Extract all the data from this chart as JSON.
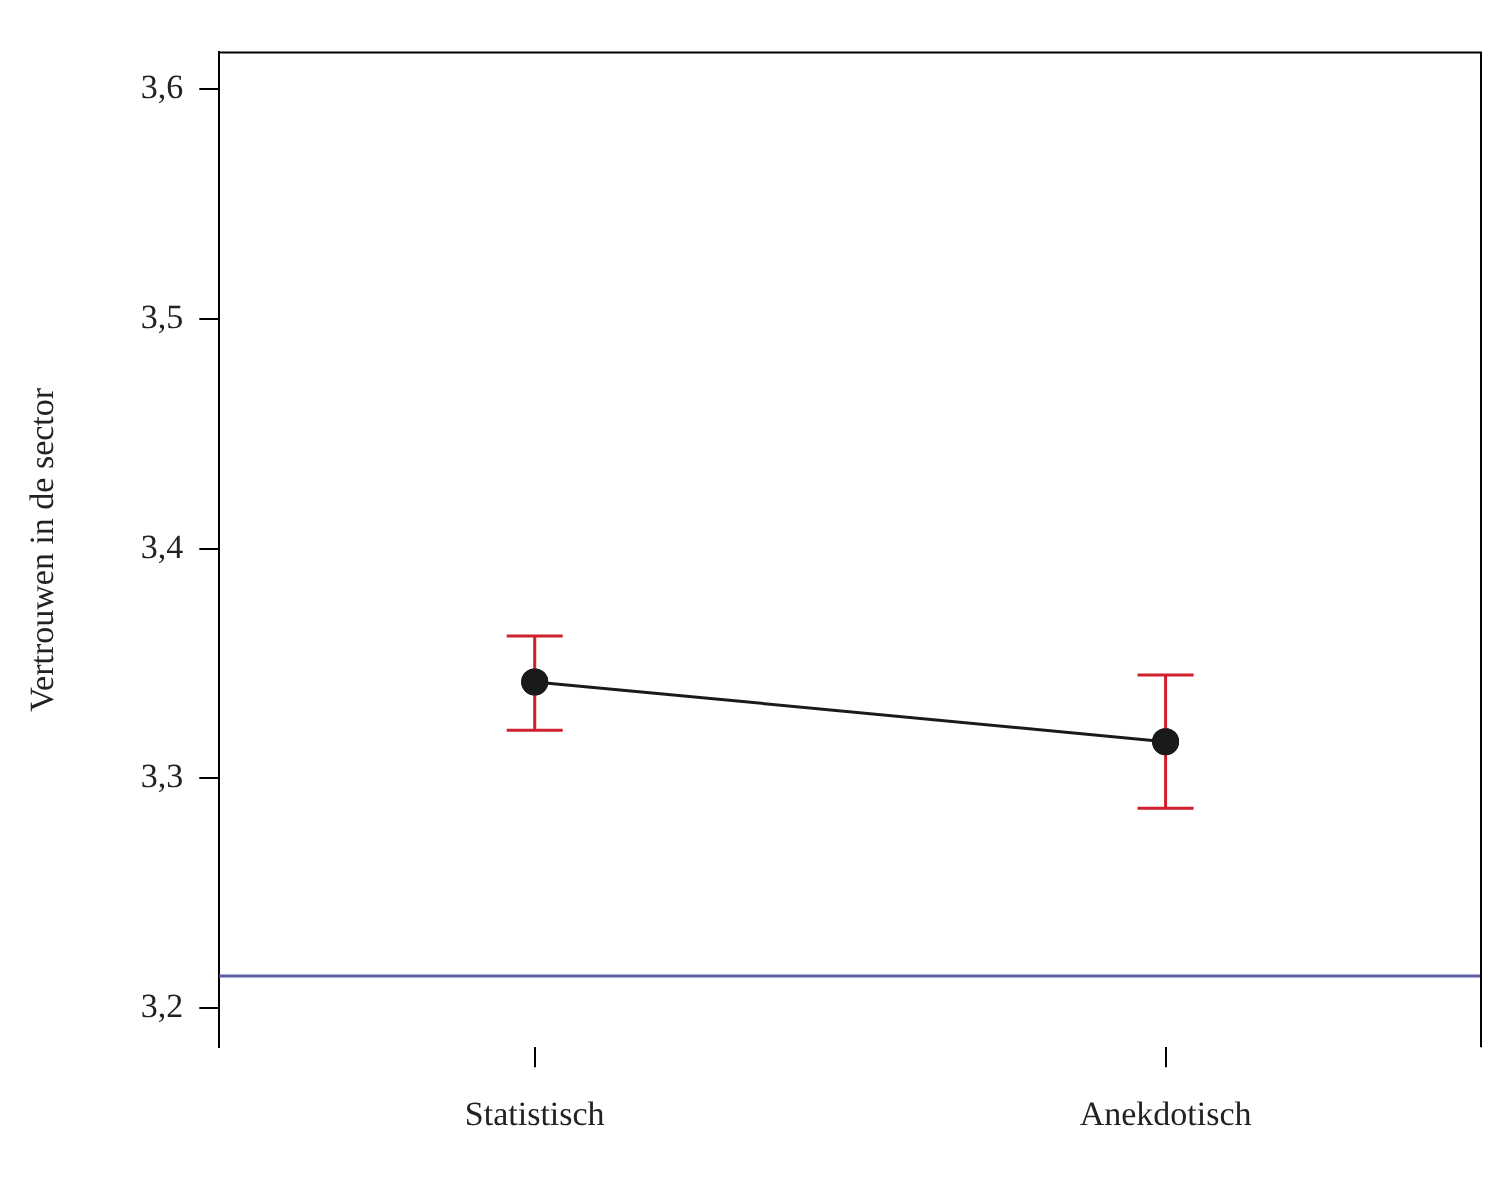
{
  "chart_data": {
    "type": "line",
    "ylabel": "Vertrouwen in de sector",
    "categories": [
      "Statistisch",
      "Anekdotisch"
    ],
    "series": [
      {
        "color": "#1a1a1a",
        "values": [
          3.342,
          3.316
        ],
        "errors": [
          [
            3.321,
            3.362
          ],
          [
            3.287,
            3.345
          ]
        ]
      }
    ],
    "ylim": [
      3.183,
      3.616
    ],
    "yticks": [
      {
        "value": 3.2,
        "label": "3,2"
      },
      {
        "value": 3.3,
        "label": "3,3"
      },
      {
        "value": 3.4,
        "label": "3,4"
      },
      {
        "value": 3.5,
        "label": "3,5"
      },
      {
        "value": 3.6,
        "label": "3,6"
      }
    ],
    "ref_lines": [
      {
        "axis": "y",
        "value": 3.214,
        "color": "#5b5ea6"
      }
    ],
    "grid": false,
    "legend": false,
    "marker": "circle",
    "line_style": "solid"
  }
}
